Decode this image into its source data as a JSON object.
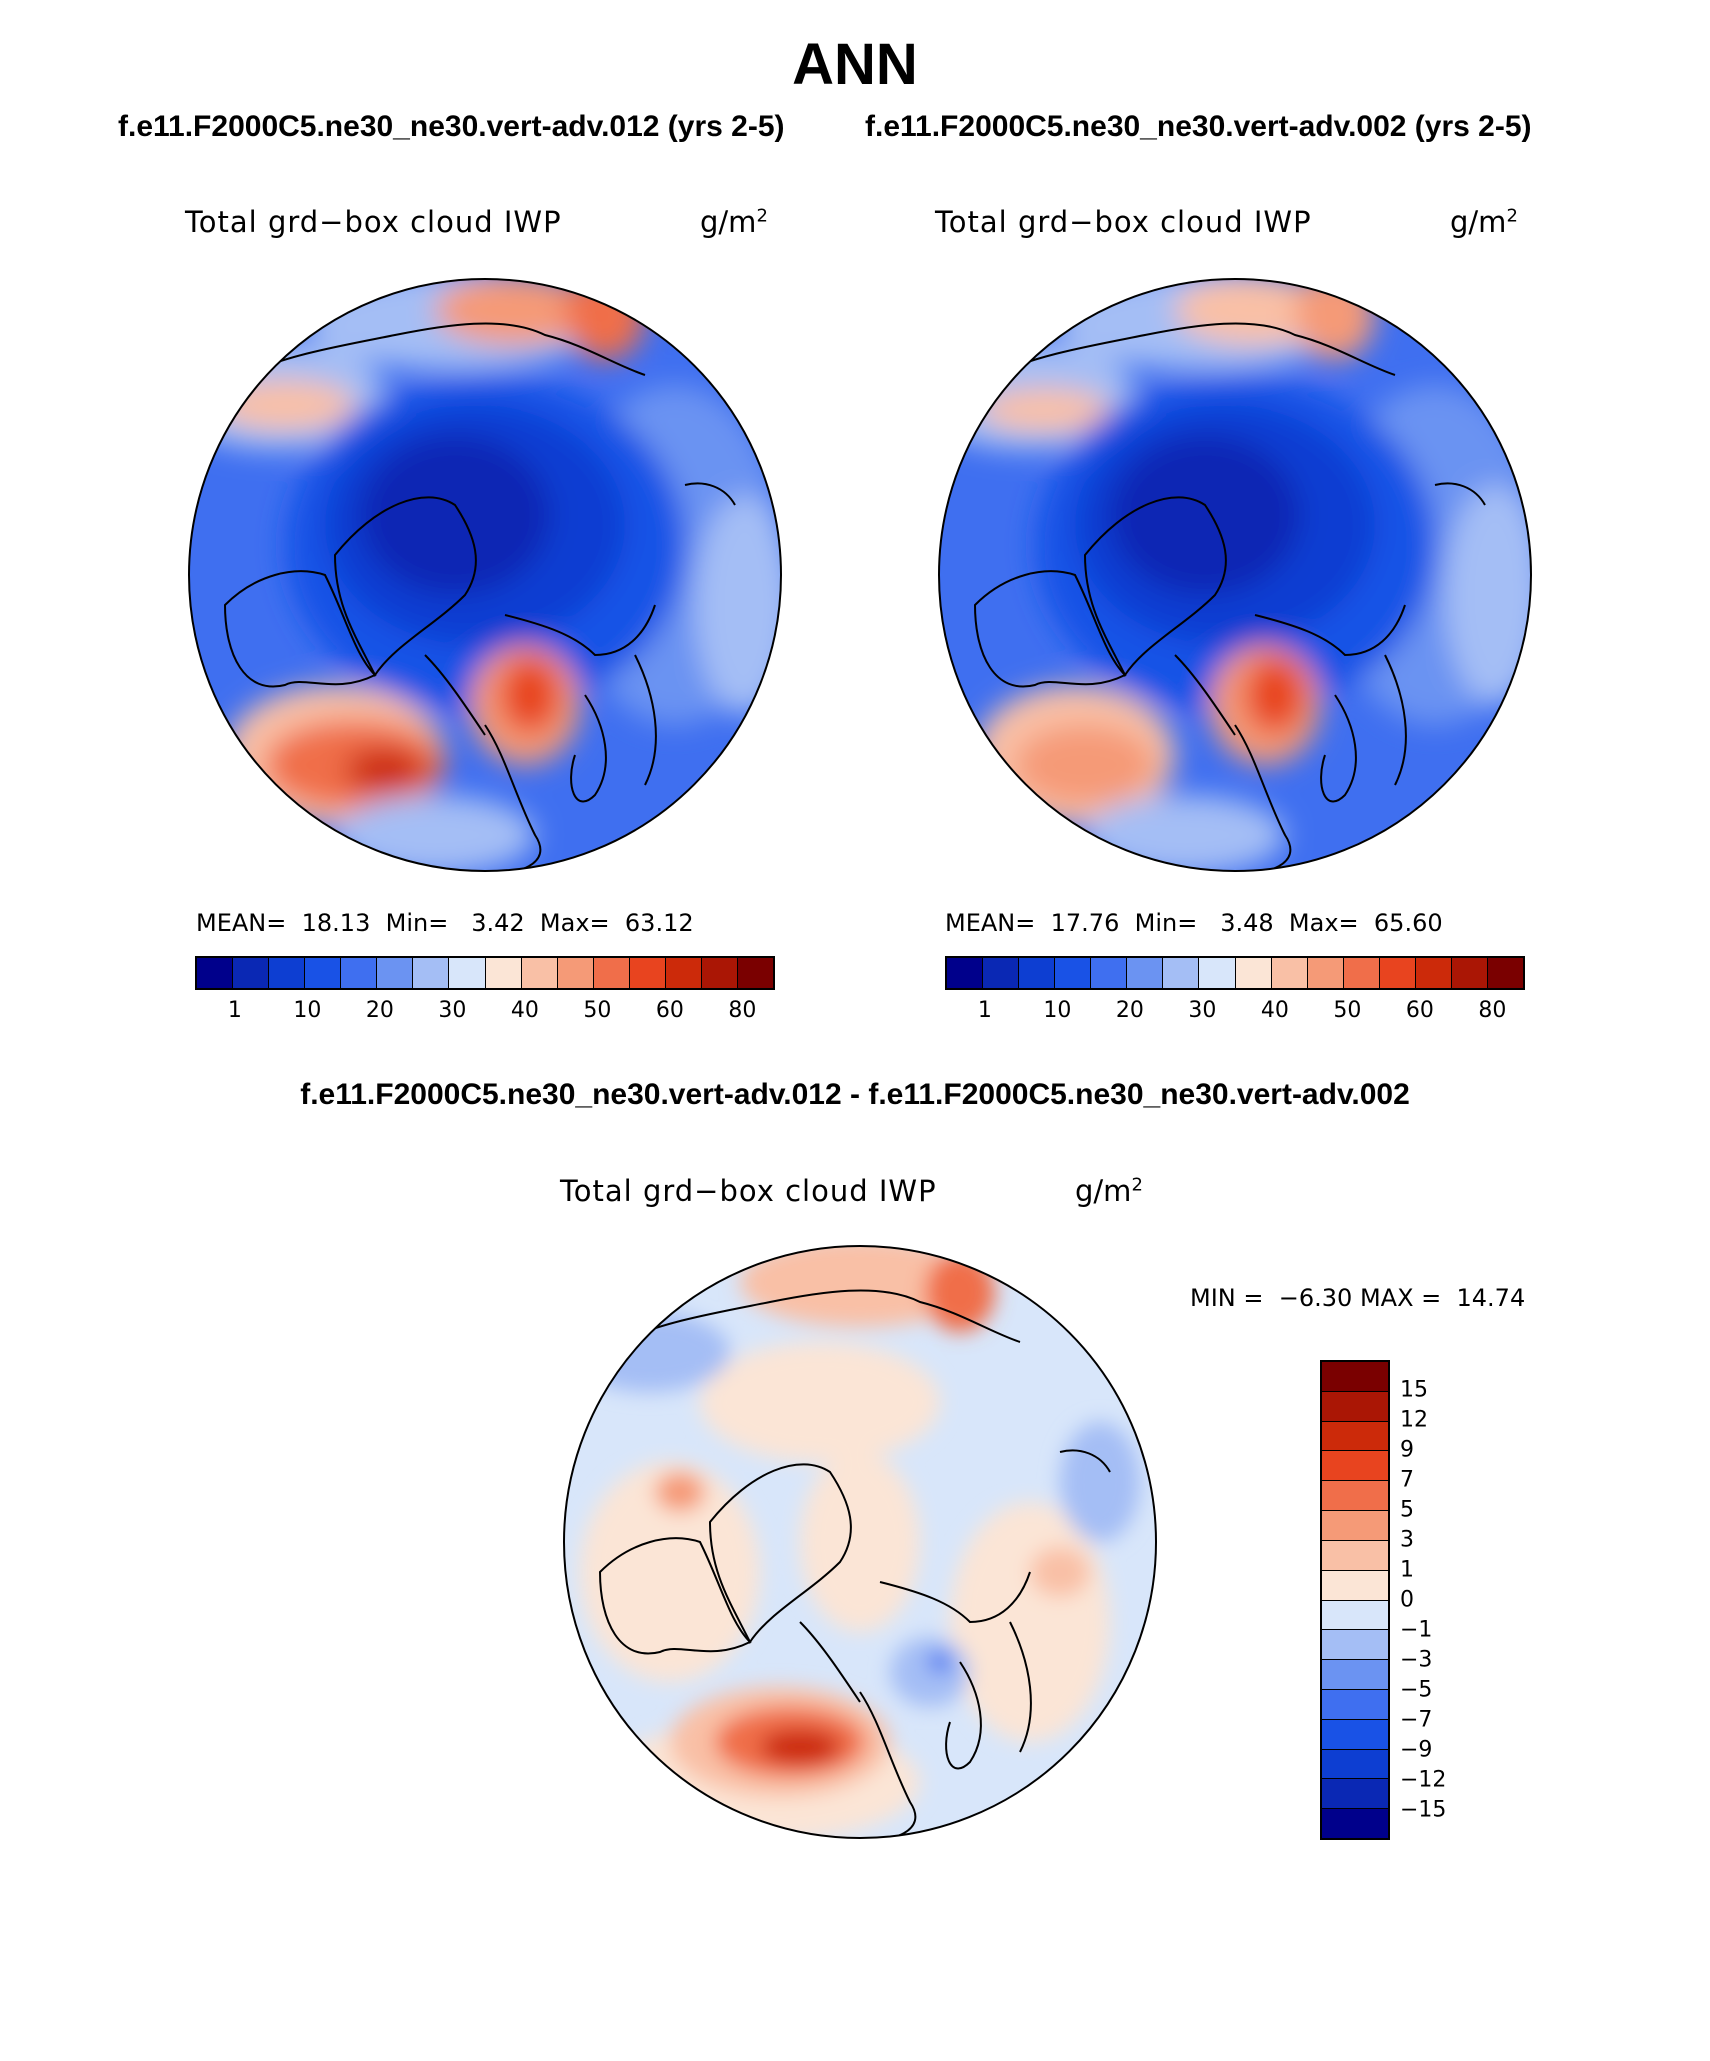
{
  "title": "ANN",
  "case_titles": [
    "f.e11.F2000C5.ne30_ne30.vert-adv.012 (yrs 2-5)",
    "f.e11.F2000C5.ne30_ne30.vert-adv.002 (yrs 2-5)"
  ],
  "diff_title": "f.e11.F2000C5.ne30_ne30.vert-adv.012 - f.e11.F2000C5.ne30_ne30.vert-adv.002",
  "panels": [
    {
      "variable": "Total grd−box cloud IWP",
      "units": "g/m",
      "units_exp": "2",
      "stats": {
        "mean_label": "MEAN=",
        "mean": "18.13",
        "min_label": "Min=",
        "min": "3.42",
        "max_label": "Max=",
        "max": "63.12"
      },
      "colorbar": {
        "colors": [
          "#00008b",
          "#0a28b4",
          "#0d3ed2",
          "#1952e6",
          "#3f6ff0",
          "#6b93f2",
          "#a4bef5",
          "#d8e6fa",
          "#fbe5d6",
          "#f9c0a6",
          "#f59a77",
          "#f06e4a",
          "#e8441f",
          "#cc2a0a",
          "#aa1605",
          "#7a0000"
        ],
        "ticks": [
          "1",
          "10",
          "20",
          "30",
          "40",
          "50",
          "60",
          "80"
        ]
      }
    },
    {
      "variable": "Total grd−box cloud IWP",
      "units": "g/m",
      "units_exp": "2",
      "stats": {
        "mean_label": "MEAN=",
        "mean": "17.76",
        "min_label": "Min=",
        "min": "3.48",
        "max_label": "Max=",
        "max": "65.60"
      },
      "colorbar": {
        "colors": [
          "#00008b",
          "#0a28b4",
          "#0d3ed2",
          "#1952e6",
          "#3f6ff0",
          "#6b93f2",
          "#a4bef5",
          "#d8e6fa",
          "#fbe5d6",
          "#f9c0a6",
          "#f59a77",
          "#f06e4a",
          "#e8441f",
          "#cc2a0a",
          "#aa1605",
          "#7a0000"
        ],
        "ticks": [
          "1",
          "10",
          "20",
          "30",
          "40",
          "50",
          "60",
          "80"
        ]
      }
    }
  ],
  "diff_panel": {
    "variable": "Total grd−box cloud IWP",
    "units": "g/m",
    "units_exp": "2",
    "stats": {
      "min_label": "MIN =",
      "min": "−6.30",
      "max_label": "MAX =",
      "max": "14.74"
    },
    "colorbar": {
      "colors": [
        "#7a0000",
        "#aa1605",
        "#cc2a0a",
        "#e8441f",
        "#f06e4a",
        "#f59a77",
        "#f9c0a6",
        "#fbe5d6",
        "#d8e6fa",
        "#a4bef5",
        "#6b93f2",
        "#3f6ff0",
        "#1952e6",
        "#0d3ed2",
        "#0a28b4",
        "#00008b"
      ],
      "ticks": [
        "15",
        "12",
        "9",
        "7",
        "5",
        "3",
        "1",
        "0",
        "−1",
        "−3",
        "−5",
        "−7",
        "−9",
        "−12",
        "−15"
      ]
    }
  }
}
